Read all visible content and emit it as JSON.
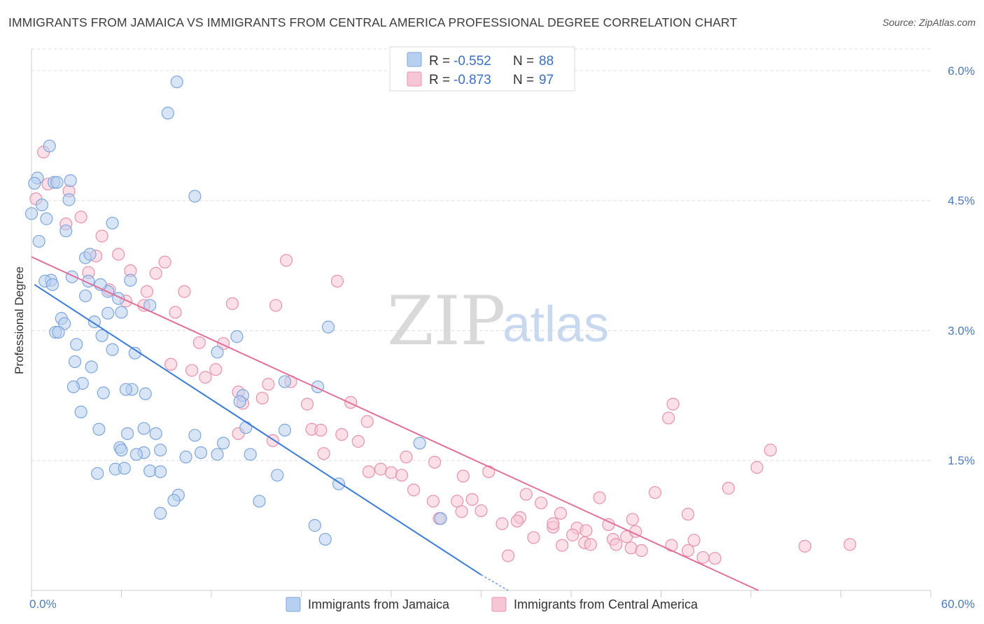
{
  "title": "IMMIGRANTS FROM JAMAICA VS IMMIGRANTS FROM CENTRAL AMERICA PROFESSIONAL DEGREE CORRELATION CHART",
  "source": "Source: ZipAtlas.com",
  "watermark": {
    "zip": "ZIP",
    "atlas": "atlas"
  },
  "colors": {
    "jamaica_fill": "#b8d0f0",
    "jamaica_stroke": "#7ea6dc",
    "jamaica_line": "#3a7bd5",
    "central_fill": "#f7c6d4",
    "central_stroke": "#e891ad",
    "central_line": "#e0709a",
    "grid": "#dcdcdc",
    "tick_text": "#4a7bc0"
  },
  "legend": {
    "rows": [
      {
        "r_label": "R = ",
        "r_value": "-0.552",
        "n_label": "N = ",
        "n_value": "88"
      },
      {
        "r_label": "R = ",
        "r_value": "-0.873",
        "n_label": "N = ",
        "n_value": "97"
      }
    ]
  },
  "chart_data": {
    "type": "scatter",
    "xlabel": "",
    "ylabel": "Professional Degree",
    "xlim": [
      0,
      60
    ],
    "ylim": [
      0,
      6.25
    ],
    "x_tick_labels": [
      "0.0%",
      "60.0%"
    ],
    "y_ticks": [
      1.5,
      3.0,
      4.5,
      6.0
    ],
    "y_tick_labels": [
      "1.5%",
      "3.0%",
      "4.5%",
      "6.0%"
    ],
    "series": [
      {
        "name": "Immigrants from Jamaica",
        "trend": {
          "x0": 0.2,
          "y0": 3.53,
          "x1": 30.0,
          "y1": 0.18,
          "dash_to_x": 31.8,
          "dash_to_y": 0.0
        },
        "points": [
          [
            9.7,
            5.87
          ],
          [
            9.1,
            5.51
          ],
          [
            1.2,
            5.13
          ],
          [
            0.4,
            4.76
          ],
          [
            1.5,
            4.71
          ],
          [
            2.6,
            4.73
          ],
          [
            0.7,
            4.45
          ],
          [
            2.5,
            4.51
          ],
          [
            10.9,
            4.55
          ],
          [
            1.0,
            4.29
          ],
          [
            5.4,
            4.24
          ],
          [
            2.3,
            4.15
          ],
          [
            0.5,
            4.03
          ],
          [
            3.6,
            3.84
          ],
          [
            3.9,
            3.88
          ],
          [
            2.7,
            3.62
          ],
          [
            6.6,
            3.58
          ],
          [
            1.3,
            3.58
          ],
          [
            0.9,
            3.57
          ],
          [
            1.4,
            3.53
          ],
          [
            3.8,
            3.57
          ],
          [
            3.6,
            3.4
          ],
          [
            5.1,
            3.45
          ],
          [
            5.8,
            3.37
          ],
          [
            7.9,
            3.29
          ],
          [
            6.0,
            3.21
          ],
          [
            5.1,
            3.2
          ],
          [
            2.0,
            3.14
          ],
          [
            2.2,
            3.08
          ],
          [
            4.2,
            3.1
          ],
          [
            1.6,
            2.98
          ],
          [
            1.8,
            2.98
          ],
          [
            4.7,
            2.94
          ],
          [
            13.7,
            2.93
          ],
          [
            19.8,
            3.04
          ],
          [
            6.9,
            2.74
          ],
          [
            5.4,
            2.78
          ],
          [
            12.4,
            2.75
          ],
          [
            3.0,
            2.84
          ],
          [
            2.9,
            2.64
          ],
          [
            4.0,
            2.58
          ],
          [
            3.4,
            2.39
          ],
          [
            2.8,
            2.35
          ],
          [
            6.7,
            2.32
          ],
          [
            6.3,
            2.32
          ],
          [
            7.6,
            2.27
          ],
          [
            4.8,
            2.28
          ],
          [
            14.1,
            2.25
          ],
          [
            16.9,
            2.41
          ],
          [
            19.1,
            2.35
          ],
          [
            13.9,
            2.18
          ],
          [
            3.3,
            2.06
          ],
          [
            7.5,
            1.87
          ],
          [
            14.3,
            1.88
          ],
          [
            4.5,
            1.86
          ],
          [
            6.4,
            1.81
          ],
          [
            8.3,
            1.81
          ],
          [
            10.9,
            1.79
          ],
          [
            16.9,
            1.85
          ],
          [
            25.9,
            1.7
          ],
          [
            12.8,
            1.7
          ],
          [
            5.9,
            1.65
          ],
          [
            6.0,
            1.62
          ],
          [
            8.6,
            1.62
          ],
          [
            7.5,
            1.59
          ],
          [
            7.0,
            1.57
          ],
          [
            11.3,
            1.59
          ],
          [
            12.4,
            1.57
          ],
          [
            14.6,
            1.57
          ],
          [
            10.3,
            1.54
          ],
          [
            5.6,
            1.4
          ],
          [
            6.2,
            1.41
          ],
          [
            7.9,
            1.38
          ],
          [
            8.6,
            1.37
          ],
          [
            4.4,
            1.35
          ],
          [
            16.4,
            1.33
          ],
          [
            20.5,
            1.23
          ],
          [
            9.8,
            1.1
          ],
          [
            9.5,
            1.04
          ],
          [
            15.2,
            1.03
          ],
          [
            8.6,
            0.89
          ],
          [
            27.3,
            0.83
          ],
          [
            18.9,
            0.75
          ],
          [
            19.6,
            0.59
          ],
          [
            0.0,
            4.35
          ],
          [
            1.7,
            4.71
          ],
          [
            0.2,
            4.7
          ],
          [
            4.6,
            3.53
          ]
        ]
      },
      {
        "name": "Immigrants from Central America",
        "trend": {
          "x0": 0.0,
          "y0": 3.85,
          "x1": 48.5,
          "y1": 0.0
        },
        "points": [
          [
            0.8,
            5.06
          ],
          [
            0.3,
            4.52
          ],
          [
            1.1,
            4.69
          ],
          [
            2.5,
            4.61
          ],
          [
            3.3,
            4.31
          ],
          [
            2.3,
            4.23
          ],
          [
            4.7,
            4.09
          ],
          [
            5.8,
            3.88
          ],
          [
            4.3,
            3.86
          ],
          [
            17.0,
            3.81
          ],
          [
            8.9,
            3.79
          ],
          [
            6.6,
            3.69
          ],
          [
            8.3,
            3.66
          ],
          [
            3.8,
            3.67
          ],
          [
            20.4,
            3.57
          ],
          [
            10.2,
            3.45
          ],
          [
            7.7,
            3.45
          ],
          [
            5.2,
            3.47
          ],
          [
            6.3,
            3.34
          ],
          [
            13.4,
            3.31
          ],
          [
            16.3,
            3.29
          ],
          [
            7.5,
            3.29
          ],
          [
            9.6,
            3.21
          ],
          [
            11.2,
            2.86
          ],
          [
            12.8,
            2.85
          ],
          [
            9.3,
            2.61
          ],
          [
            10.7,
            2.54
          ],
          [
            12.3,
            2.55
          ],
          [
            11.6,
            2.46
          ],
          [
            15.8,
            2.38
          ],
          [
            13.8,
            2.29
          ],
          [
            17.3,
            2.41
          ],
          [
            15.4,
            2.22
          ],
          [
            14.1,
            2.16
          ],
          [
            18.4,
            2.15
          ],
          [
            21.3,
            2.17
          ],
          [
            22.4,
            1.95
          ],
          [
            42.5,
            1.99
          ],
          [
            42.8,
            2.15
          ],
          [
            13.8,
            1.81
          ],
          [
            18.7,
            1.86
          ],
          [
            19.3,
            1.85
          ],
          [
            20.7,
            1.8
          ],
          [
            16.1,
            1.73
          ],
          [
            21.8,
            1.72
          ],
          [
            49.3,
            1.62
          ],
          [
            19.5,
            1.58
          ],
          [
            25.0,
            1.54
          ],
          [
            26.9,
            1.48
          ],
          [
            48.4,
            1.42
          ],
          [
            22.5,
            1.37
          ],
          [
            23.3,
            1.4
          ],
          [
            24.0,
            1.36
          ],
          [
            24.7,
            1.33
          ],
          [
            28.8,
            1.32
          ],
          [
            30.5,
            1.37
          ],
          [
            25.5,
            1.16
          ],
          [
            33.0,
            1.11
          ],
          [
            46.5,
            1.18
          ],
          [
            41.6,
            1.13
          ],
          [
            26.8,
            1.03
          ],
          [
            28.4,
            1.03
          ],
          [
            29.4,
            1.05
          ],
          [
            34.0,
            1.01
          ],
          [
            37.9,
            1.07
          ],
          [
            27.2,
            0.83
          ],
          [
            28.7,
            0.91
          ],
          [
            30.0,
            0.92
          ],
          [
            35.3,
            0.89
          ],
          [
            31.4,
            0.77
          ],
          [
            32.6,
            0.84
          ],
          [
            32.4,
            0.8
          ],
          [
            34.8,
            0.73
          ],
          [
            33.5,
            0.61
          ],
          [
            34.8,
            0.77
          ],
          [
            36.4,
            0.72
          ],
          [
            37.0,
            0.69
          ],
          [
            38.5,
            0.76
          ],
          [
            40.1,
            0.82
          ],
          [
            43.8,
            0.88
          ],
          [
            36.1,
            0.64
          ],
          [
            38.8,
            0.59
          ],
          [
            39.7,
            0.62
          ],
          [
            40.3,
            0.68
          ],
          [
            36.9,
            0.55
          ],
          [
            35.4,
            0.52
          ],
          [
            37.3,
            0.53
          ],
          [
            39.0,
            0.53
          ],
          [
            40.0,
            0.49
          ],
          [
            40.7,
            0.46
          ],
          [
            42.7,
            0.52
          ],
          [
            44.2,
            0.58
          ],
          [
            43.8,
            0.46
          ],
          [
            44.8,
            0.38
          ],
          [
            45.6,
            0.37
          ],
          [
            51.6,
            0.51
          ],
          [
            54.6,
            0.53
          ],
          [
            31.8,
            0.4
          ]
        ]
      }
    ]
  },
  "bottom_legend": [
    {
      "label": "Immigrants from Jamaica"
    },
    {
      "label": "Immigrants from Central America"
    }
  ]
}
